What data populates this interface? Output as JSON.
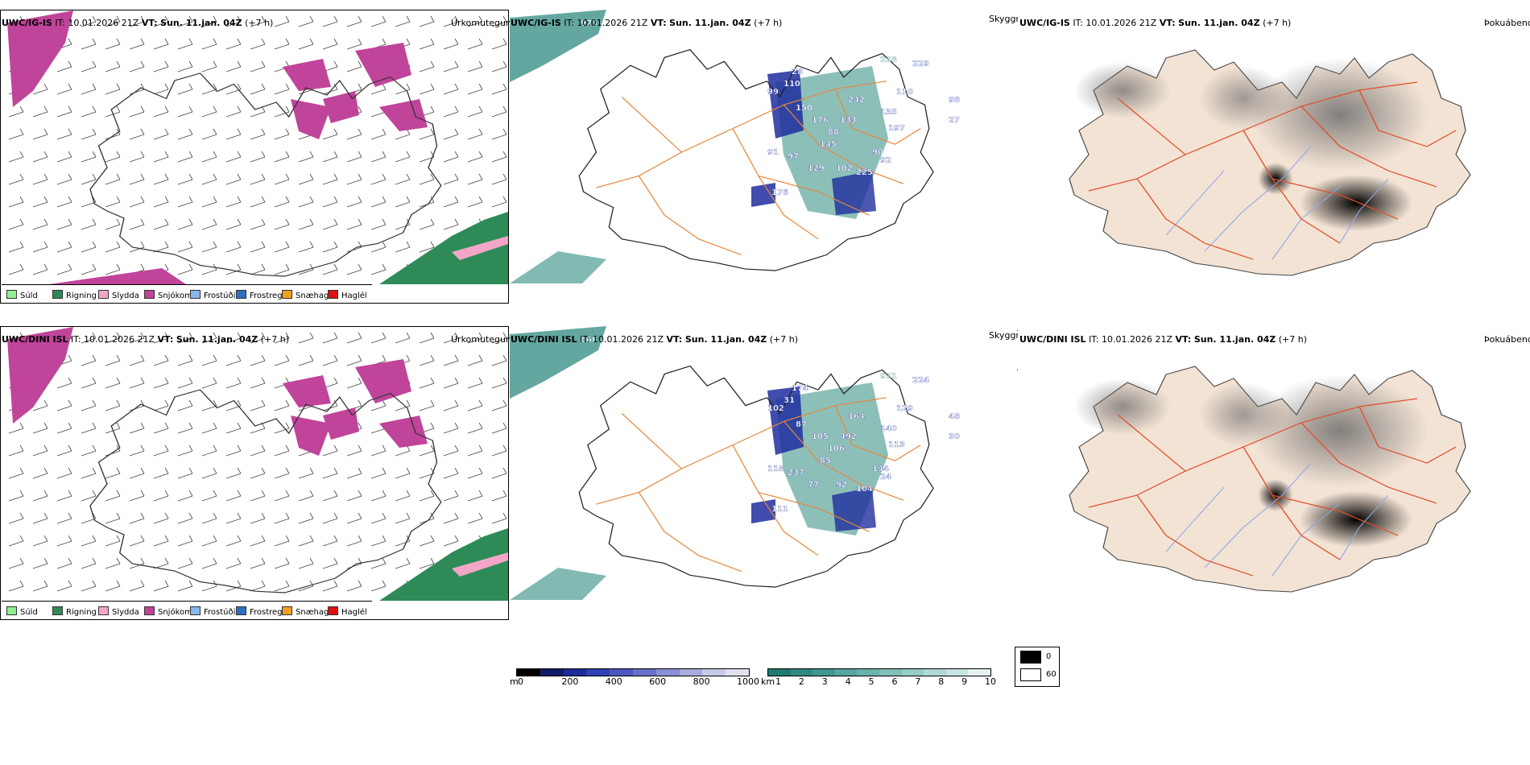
{
  "rows": [
    {
      "model": "UWC/IG-IS",
      "it": "IT: 10.01.2026 21Z",
      "vt_label": "VT:",
      "vt_value": "Sun. 11.jan. 04Z",
      "lead": "(+7 h)",
      "precip_title": "Úrkomutegund",
      "cloud_title": "Skyggni",
      "fog_title": "Þokuábendi",
      "cloud_labels": [
        "973",
        "238",
        "229",
        "110",
        "99",
        "150",
        "176",
        "242",
        "133",
        "88",
        "135",
        "197",
        "145",
        "91",
        "97",
        "90",
        "129",
        "102",
        "225",
        "92",
        "176",
        "110",
        "28",
        "27",
        "98"
      ]
    },
    {
      "model": "UWC/DINI ISL",
      "it": "IT: 10.01.2026 21Z",
      "vt_label": "VT:",
      "vt_value": "Sun. 11.jan. 04Z",
      "lead": "(+7 h)",
      "precip_title": "Úrkomutegund",
      "cloud_title": "Skyggni",
      "fog_title": "Þokuábendi",
      "cloud_labels": [
        "868",
        "921",
        "224",
        "31",
        "102",
        "87",
        "105",
        "164",
        "492",
        "106",
        "140",
        "113",
        "85",
        "118",
        "237",
        "144",
        "77",
        "92",
        "104",
        "24",
        "111",
        "129",
        "174",
        "30",
        "48"
      ]
    }
  ],
  "precip_legend": [
    {
      "label": "Súld",
      "color": "#90ee90"
    },
    {
      "label": "Rigning",
      "color": "#2e8b57"
    },
    {
      "label": "Slydda",
      "color": "#f4a6c8"
    },
    {
      "label": "Snjókoma",
      "color": "#c0449a"
    },
    {
      "label": "Frostúði",
      "color": "#87b7ee"
    },
    {
      "label": "Frostregn",
      "color": "#2f6fc0"
    },
    {
      "label": "Snæhagl",
      "color": "#f0a020"
    },
    {
      "label": "Haglél",
      "color": "#e01010"
    }
  ],
  "ceiling_scale": {
    "unit": "m",
    "ticks": [
      "0",
      "200",
      "400",
      "600",
      "800",
      "1000"
    ],
    "colors": [
      "#000",
      "#111a66",
      "#1c2a9a",
      "#3240b5",
      "#4c58c0",
      "#6870c8",
      "#8890d4",
      "#a8acdd",
      "#c8cbe8",
      "#e0e2f2"
    ]
  },
  "vis_scale": {
    "unit": "km",
    "ticks": [
      "1",
      "2",
      "3",
      "4",
      "5",
      "6",
      "7",
      "8",
      "9",
      "10"
    ],
    "colors": [
      "#1f7a70",
      "#2f8a80",
      "#409890",
      "#55a69e",
      "#6ab3ac",
      "#80c0ba",
      "#98ccc7",
      "#b0d9d5",
      "#c8e5e2",
      "#e4f2f1"
    ]
  },
  "fog_scale": {
    "ticks": [
      "0",
      "60"
    ],
    "colors": [
      "#000000",
      "#ffffff"
    ]
  },
  "colors": {
    "snow": "#c0449a",
    "rain": "#2e8b57",
    "sleet": "#f4a6c8",
    "lowcloud": "#1f2e9e",
    "vis": "#2f8a80",
    "roads": "#e8873a",
    "land": "#f3e3d5",
    "rivers": "#8fa8e8",
    "redroads": "#e0502a"
  }
}
